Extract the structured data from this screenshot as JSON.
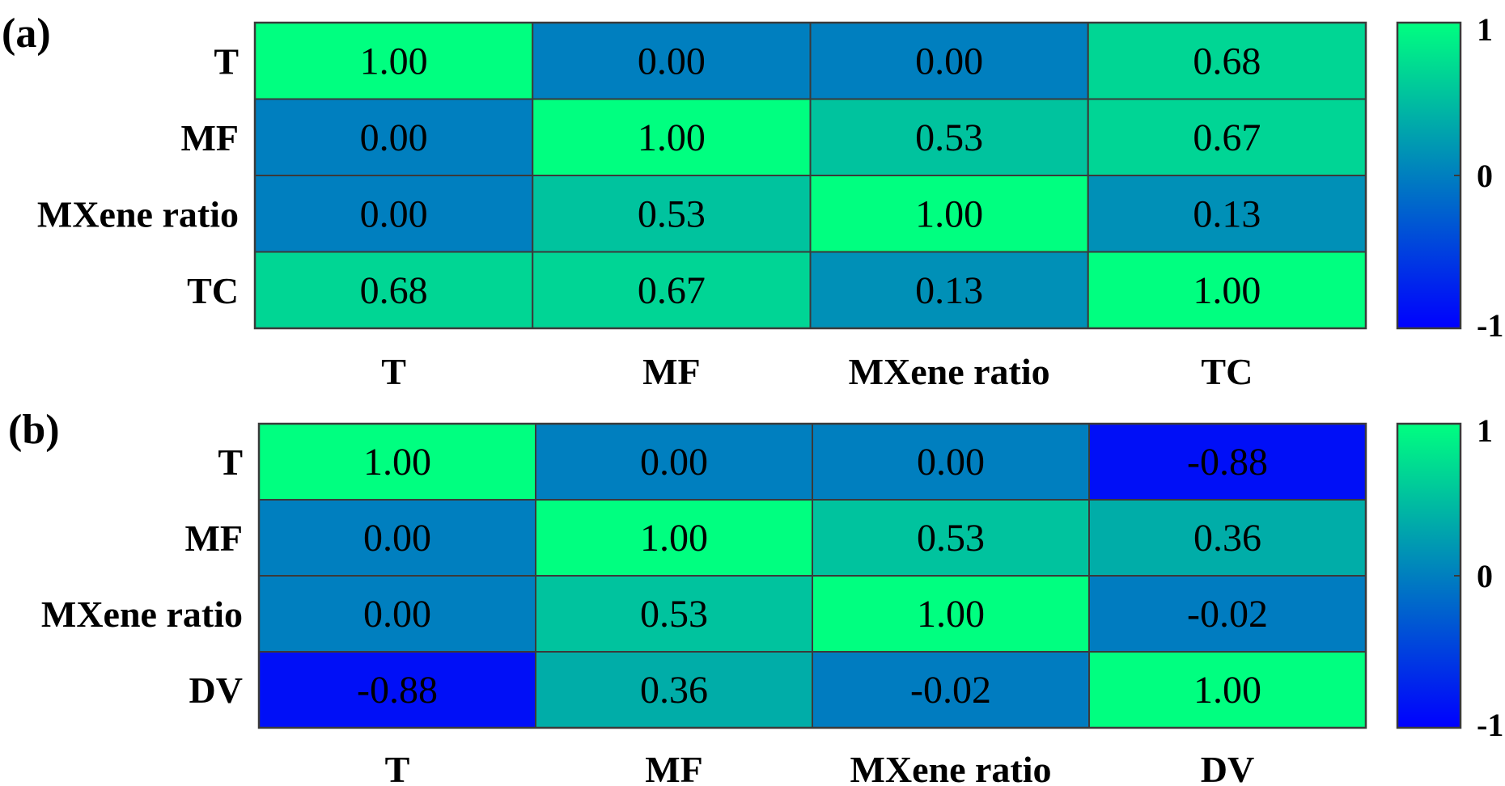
{
  "colors": {
    "low": "#0000ff",
    "mid": "#007fbf",
    "high": "#00ff80"
  },
  "chart_data": [
    {
      "type": "heatmap",
      "panel": "(a)",
      "rows": [
        "T",
        "MF",
        "MXene ratio",
        "TC"
      ],
      "columns": [
        "T",
        "MF",
        "MXene ratio",
        "TC"
      ],
      "values": [
        [
          1.0,
          0.0,
          0.0,
          0.68
        ],
        [
          0.0,
          1.0,
          0.53,
          0.67
        ],
        [
          0.0,
          0.53,
          1.0,
          0.13
        ],
        [
          0.68,
          0.67,
          0.13,
          1.0
        ]
      ],
      "labels": [
        [
          "1.00",
          "0.00",
          "0.00",
          "0.68"
        ],
        [
          "0.00",
          "1.00",
          "0.53",
          "0.67"
        ],
        [
          "0.00",
          "0.53",
          "1.00",
          "0.13"
        ],
        [
          "0.68",
          "0.67",
          "0.13",
          "1.00"
        ]
      ],
      "colorbar": {
        "range": [
          -1,
          1
        ],
        "ticks": [
          "1",
          "0",
          "-1"
        ]
      }
    },
    {
      "type": "heatmap",
      "panel": "(b)",
      "rows": [
        "T",
        "MF",
        "MXene ratio",
        "DV"
      ],
      "columns": [
        "T",
        "MF",
        "MXene ratio",
        "DV"
      ],
      "values": [
        [
          1.0,
          0.0,
          0.0,
          -0.88
        ],
        [
          0.0,
          1.0,
          0.53,
          0.36
        ],
        [
          0.0,
          0.53,
          1.0,
          -0.02
        ],
        [
          -0.88,
          0.36,
          -0.02,
          1.0
        ]
      ],
      "labels": [
        [
          "1.00",
          "0.00",
          "0.00",
          "-0.88"
        ],
        [
          "0.00",
          "1.00",
          "0.53",
          "0.36"
        ],
        [
          "0.00",
          "0.53",
          "1.00",
          "-0.02"
        ],
        [
          "-0.88",
          "0.36",
          "-0.02",
          "1.00"
        ]
      ],
      "colorbar": {
        "range": [
          -1,
          1
        ],
        "ticks": [
          "1",
          "0",
          "-1"
        ]
      }
    }
  ]
}
